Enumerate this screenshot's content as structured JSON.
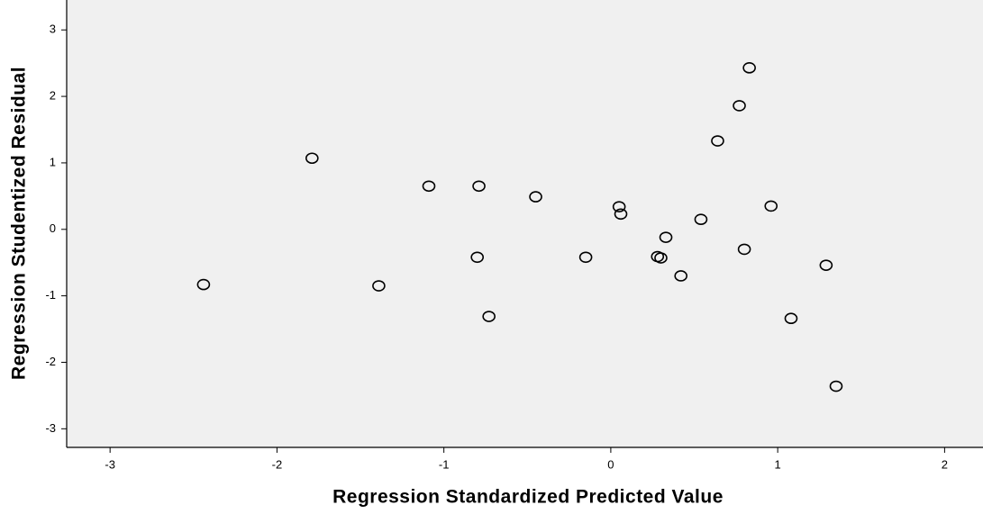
{
  "chart_data": {
    "type": "scatter",
    "x_label": "Regression Standardized Predicted Value",
    "y_label": "Regression Studentized Residual",
    "x": [
      -2.44,
      -1.79,
      -1.39,
      -1.09,
      -0.79,
      -0.8,
      -0.73,
      -0.45,
      -0.15,
      0.05,
      0.06,
      0.28,
      0.3,
      0.33,
      0.42,
      0.54,
      0.64,
      0.77,
      0.83,
      0.8,
      0.96,
      1.08,
      1.29,
      1.35
    ],
    "values": [
      -0.83,
      1.07,
      -0.85,
      0.65,
      0.65,
      -0.42,
      -1.31,
      0.49,
      -0.42,
      0.34,
      0.23,
      -0.41,
      -0.43,
      -0.12,
      -0.7,
      0.15,
      1.33,
      1.86,
      2.43,
      -0.3,
      0.35,
      -1.34,
      -0.54,
      -2.36
    ],
    "xlim": [
      -3.26,
      2.23
    ],
    "ylim": [
      -3.28,
      3.45
    ],
    "xticks": [
      -3,
      -2,
      -1,
      0,
      1,
      2
    ],
    "yticks": [
      -3,
      -2,
      -1,
      0,
      1,
      2,
      3
    ],
    "marker_color": "#000000",
    "plot_background": "#f0f0f0"
  }
}
